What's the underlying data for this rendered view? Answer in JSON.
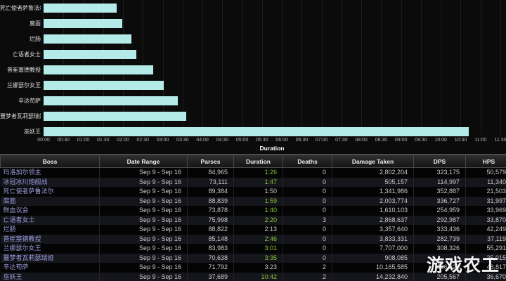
{
  "watermark": "游戏农工",
  "chart_data": {
    "type": "bar",
    "orientation": "horizontal",
    "xlabel": "Duration",
    "bar_color": "#b4ebe8",
    "grid": true,
    "xlim_seconds": [
      0,
      690
    ],
    "x_ticks": [
      "00:00",
      "00:30",
      "01:00",
      "01:30",
      "02:00",
      "02:30",
      "03:00",
      "03:30",
      "04:00",
      "04:30",
      "05:00",
      "05:30",
      "06:00",
      "06:30",
      "07:00",
      "07:30",
      "08:00",
      "08:30",
      "09:00",
      "09:30",
      "10:00",
      "10:30",
      "11:00",
      "11:30"
    ],
    "categories": [
      "死亡使者萨鲁法尔",
      "腐面",
      "烂肠",
      "亡语者女士",
      "普崔塞德教授",
      "兰娜瑟尔女王",
      "辛达苟萨",
      "噩梦者瓦莉瑟瑞娅",
      "巫妖王"
    ],
    "values_seconds": [
      110,
      119,
      133,
      140,
      166,
      181,
      203,
      215,
      642
    ],
    "value_labels": [
      "1:50",
      "1:59",
      "2:13",
      "2:20",
      "2:46",
      "3:01",
      "3:23",
      "3:35",
      "10:42"
    ]
  },
  "table": {
    "columns": [
      "Boss",
      "Date Range",
      "Parses",
      "Duration",
      "Deaths",
      "Damage Taken",
      "DPS",
      "HPS"
    ],
    "rows": [
      {
        "boss": "玛洛加尔领主",
        "date_range": "Sep 9 - Sep 16",
        "parses": "84,965",
        "duration": "1:26",
        "dim": false,
        "deaths": "0",
        "damage_taken": "2,802,204",
        "dps": "323,175",
        "hps": "50,579"
      },
      {
        "boss": "冰冠冰川炮舰战",
        "date_range": "Sep 9 - Sep 16",
        "parses": "73,111",
        "duration": "1:47",
        "dim": false,
        "deaths": "0",
        "damage_taken": "505,157",
        "dps": "114,997",
        "hps": "11,340"
      },
      {
        "boss": "死亡使者萨鲁法尔",
        "date_range": "Sep 9 - Sep 16",
        "parses": "89,384",
        "duration": "1:50",
        "dim": true,
        "deaths": "0",
        "damage_taken": "1,341,986",
        "dps": "352,887",
        "hps": "21,503"
      },
      {
        "boss": "腐面",
        "date_range": "Sep 9 - Sep 16",
        "parses": "88,839",
        "duration": "1:59",
        "dim": false,
        "deaths": "0",
        "damage_taken": "2,003,774",
        "dps": "336,727",
        "hps": "31,997"
      },
      {
        "boss": "鲜血议会",
        "date_range": "Sep 9 - Sep 16",
        "parses": "73,878",
        "duration": "1:40",
        "dim": false,
        "deaths": "0",
        "damage_taken": "1,610,103",
        "dps": "254,959",
        "hps": "33,969"
      },
      {
        "boss": "亡语者女士",
        "date_range": "Sep 9 - Sep 16",
        "parses": "75,998",
        "duration": "2:20",
        "dim": false,
        "deaths": "3",
        "damage_taken": "2,868,637",
        "dps": "292,987",
        "hps": "33,870"
      },
      {
        "boss": "烂肠",
        "date_range": "Sep 9 - Sep 16",
        "parses": "88,822",
        "duration": "2:13",
        "dim": true,
        "deaths": "0",
        "damage_taken": "3,357,640",
        "dps": "333,436",
        "hps": "42,249"
      },
      {
        "boss": "普崔塞德教授",
        "date_range": "Sep 9 - Sep 16",
        "parses": "85,148",
        "duration": "2:46",
        "dim": false,
        "deaths": "0",
        "damage_taken": "3,833,331",
        "dps": "282,739",
        "hps": "37,119"
      },
      {
        "boss": "兰娜瑟尔女王",
        "date_range": "Sep 9 - Sep 16",
        "parses": "83,983",
        "duration": "3:01",
        "dim": false,
        "deaths": "0",
        "damage_taken": "7,707,000",
        "dps": "308,326",
        "hps": "55,291"
      },
      {
        "boss": "噩梦者瓦莉瑟瑞娅",
        "date_range": "Sep 9 - Sep 16",
        "parses": "70,638",
        "duration": "3:35",
        "dim": false,
        "deaths": "0",
        "damage_taken": "908,085",
        "dps": "",
        "hps": "35,015"
      },
      {
        "boss": "辛达苟萨",
        "date_range": "Sep 9 - Sep 16",
        "parses": "71,792",
        "duration": "3:23",
        "dim": true,
        "deaths": "2",
        "damage_taken": "10,165,585",
        "dps": "306,825",
        "hps": "48,817"
      },
      {
        "boss": "巫妖王",
        "date_range": "Sep 9 - Sep 16",
        "parses": "37,689",
        "duration": "10:42",
        "dim": false,
        "deaths": "2",
        "damage_taken": "14,232,840",
        "dps": "205,567",
        "hps": "36,670"
      }
    ]
  }
}
